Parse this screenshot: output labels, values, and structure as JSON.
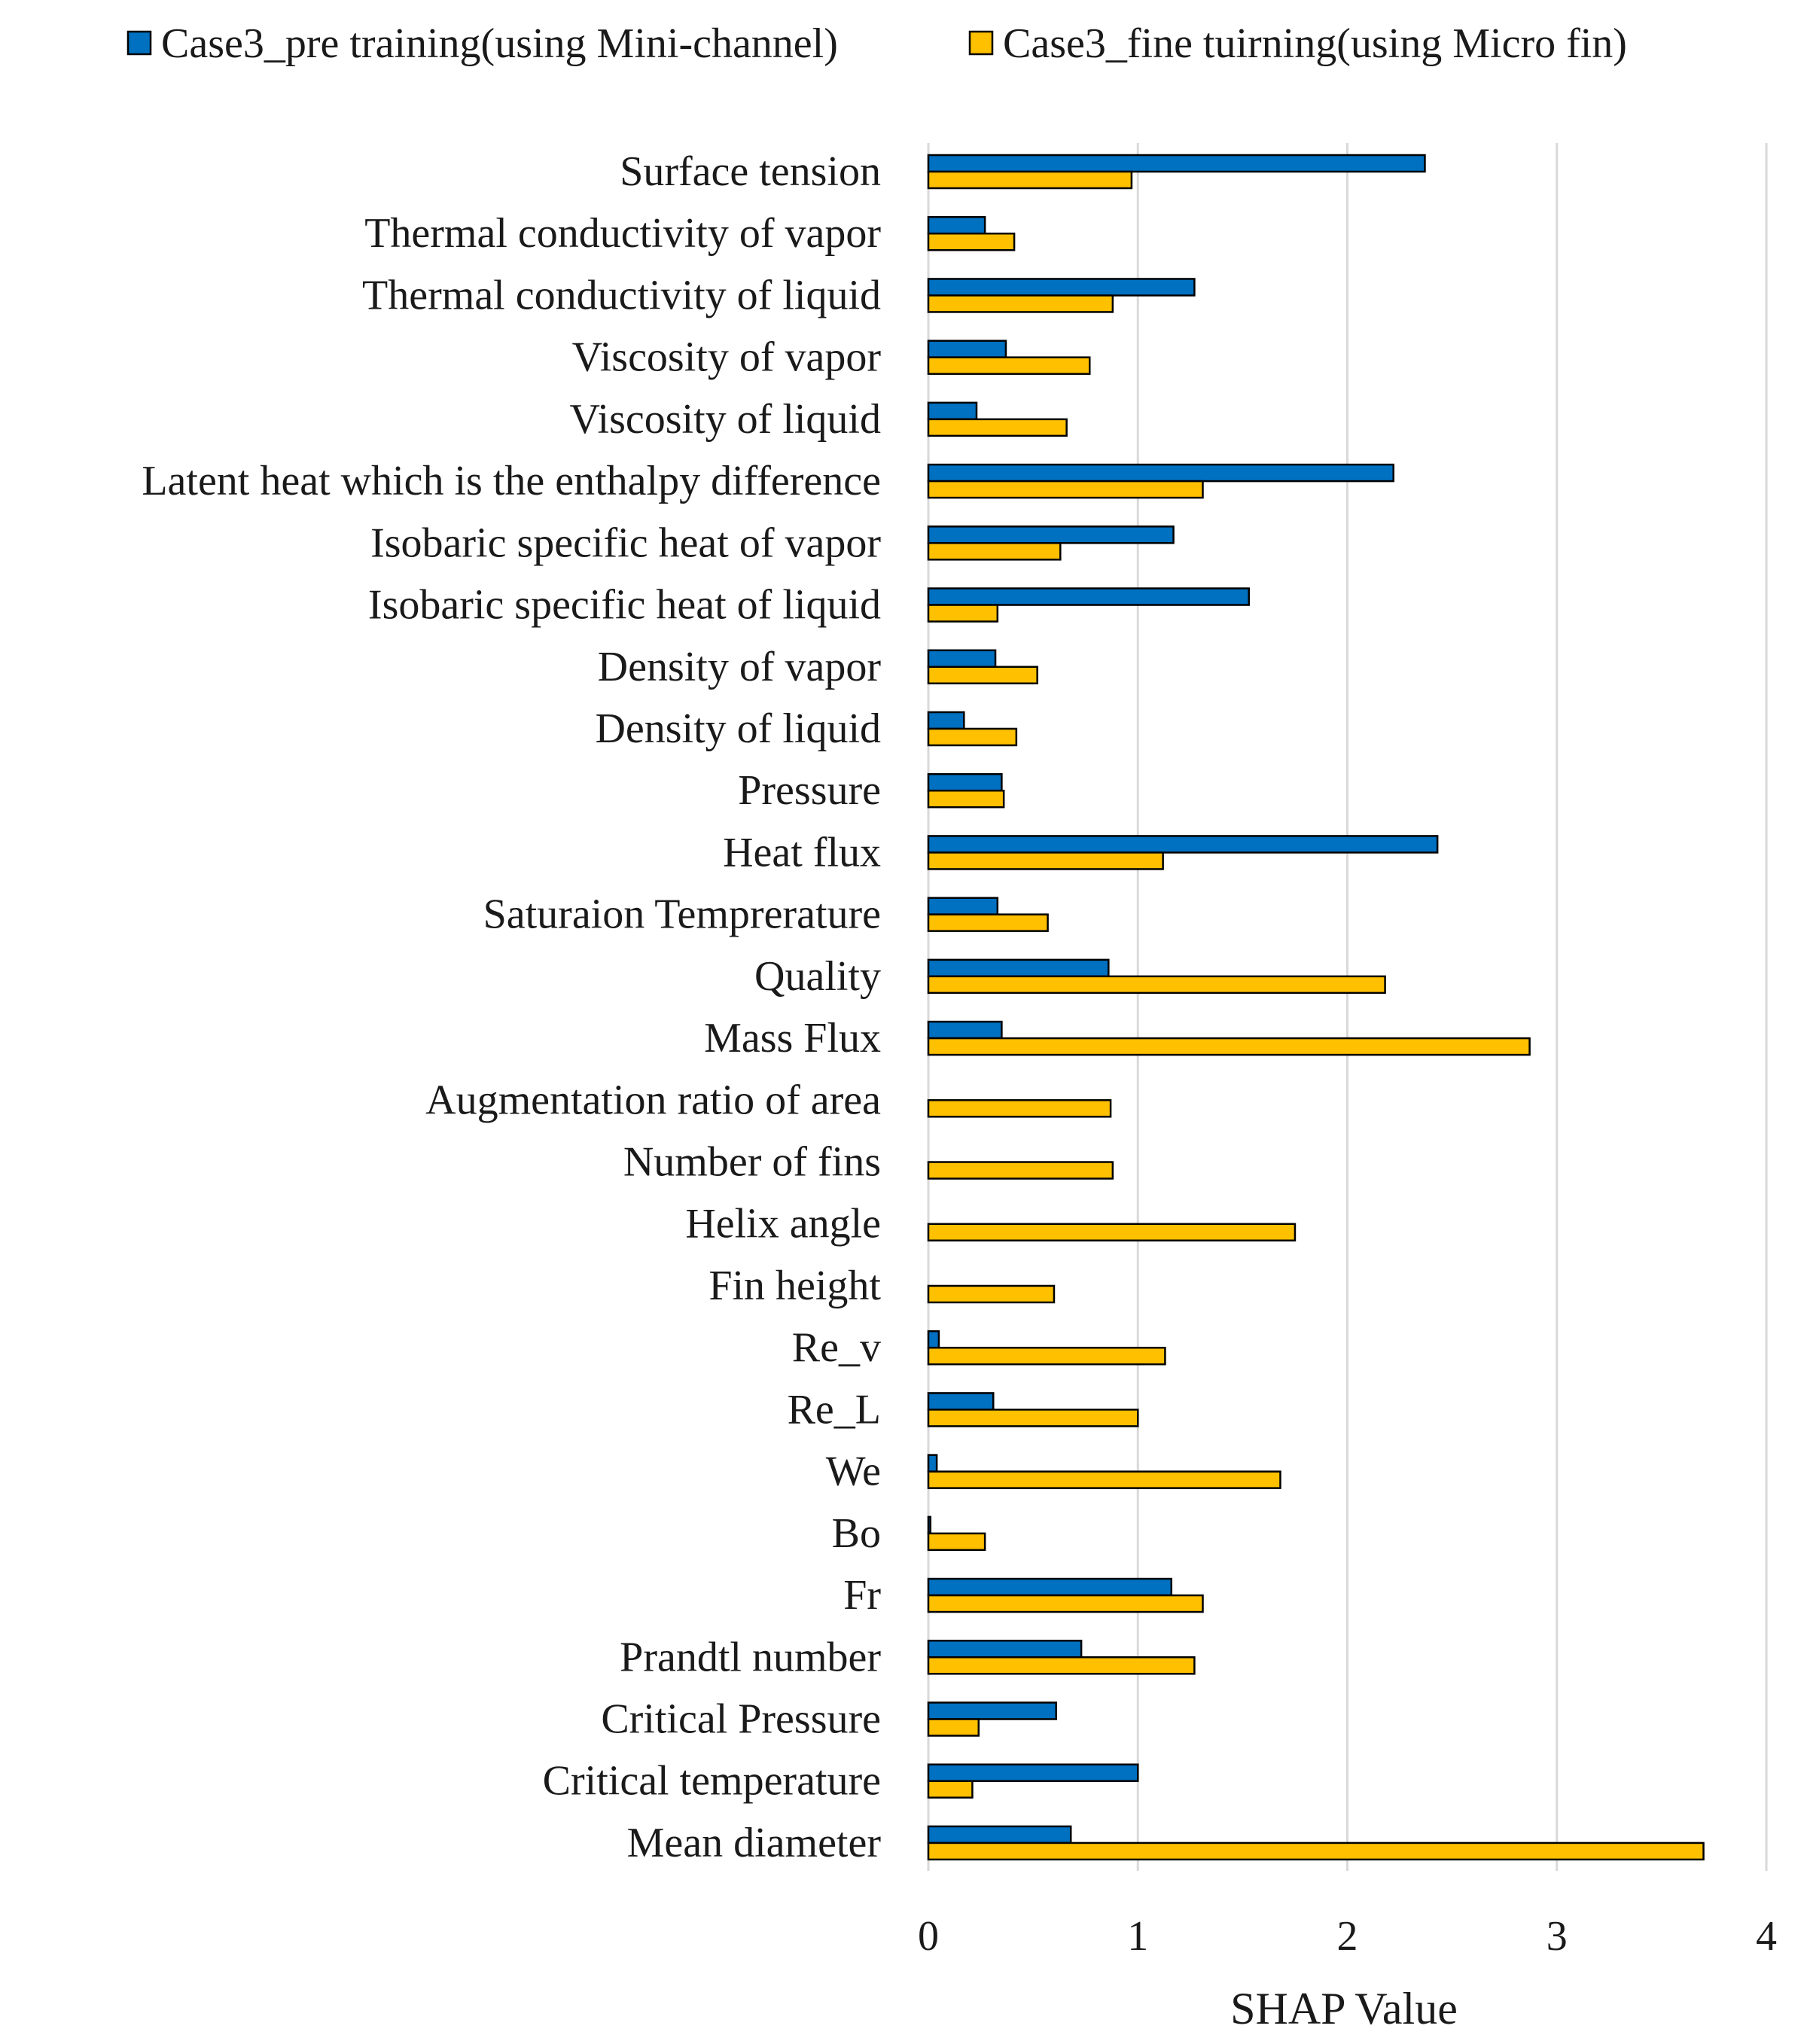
{
  "chart_data": {
    "type": "bar",
    "orientation": "horizontal",
    "title": "",
    "xlabel": "SHAP Value",
    "ylabel": "",
    "xlim": [
      0,
      4
    ],
    "xticks": [
      0,
      1,
      2,
      3,
      4
    ],
    "grid": true,
    "legend_position": "top",
    "categories": [
      "Surface tension",
      "Thermal conductivity of vapor",
      "Thermal conductivity of liquid",
      "Viscosity of vapor",
      "Viscosity of liquid",
      "Latent heat which is the enthalpy difference",
      "Isobaric specific heat of vapor",
      "Isobaric specific heat of liquid",
      "Density of vapor",
      "Density of liquid",
      "Pressure",
      "Heat flux",
      "Saturaion Temprerature",
      "Quality",
      "Mass Flux",
      "Augmentation ratio of area",
      "Number of fins",
      "Helix angle",
      "Fin height",
      "Re_v",
      "Re_L",
      "We",
      "Bo",
      "Fr",
      "Prandtl number",
      "Critical Pressure",
      "Critical temperature",
      "Mean diameter"
    ],
    "series": [
      {
        "name": "Case3_pre training(using Mini-channel)",
        "color": "#0070C0",
        "values": [
          2.37,
          0.27,
          1.27,
          0.37,
          0.23,
          2.22,
          1.17,
          1.53,
          0.32,
          0.17,
          0.35,
          2.43,
          0.33,
          0.86,
          0.35,
          0,
          0,
          0,
          0,
          0.05,
          0.31,
          0.04,
          0.01,
          1.16,
          0.73,
          0.61,
          1.0,
          0.68
        ]
      },
      {
        "name": "Case3_fine tuirning(using Micro fin)",
        "color": "#FFC000",
        "values": [
          0.97,
          0.41,
          0.88,
          0.77,
          0.66,
          1.31,
          0.63,
          0.33,
          0.52,
          0.42,
          0.36,
          1.12,
          0.57,
          2.18,
          2.87,
          0.87,
          0.88,
          1.75,
          0.6,
          1.13,
          1.0,
          1.68,
          0.27,
          1.31,
          1.27,
          0.24,
          0.21,
          3.7
        ]
      }
    ]
  }
}
